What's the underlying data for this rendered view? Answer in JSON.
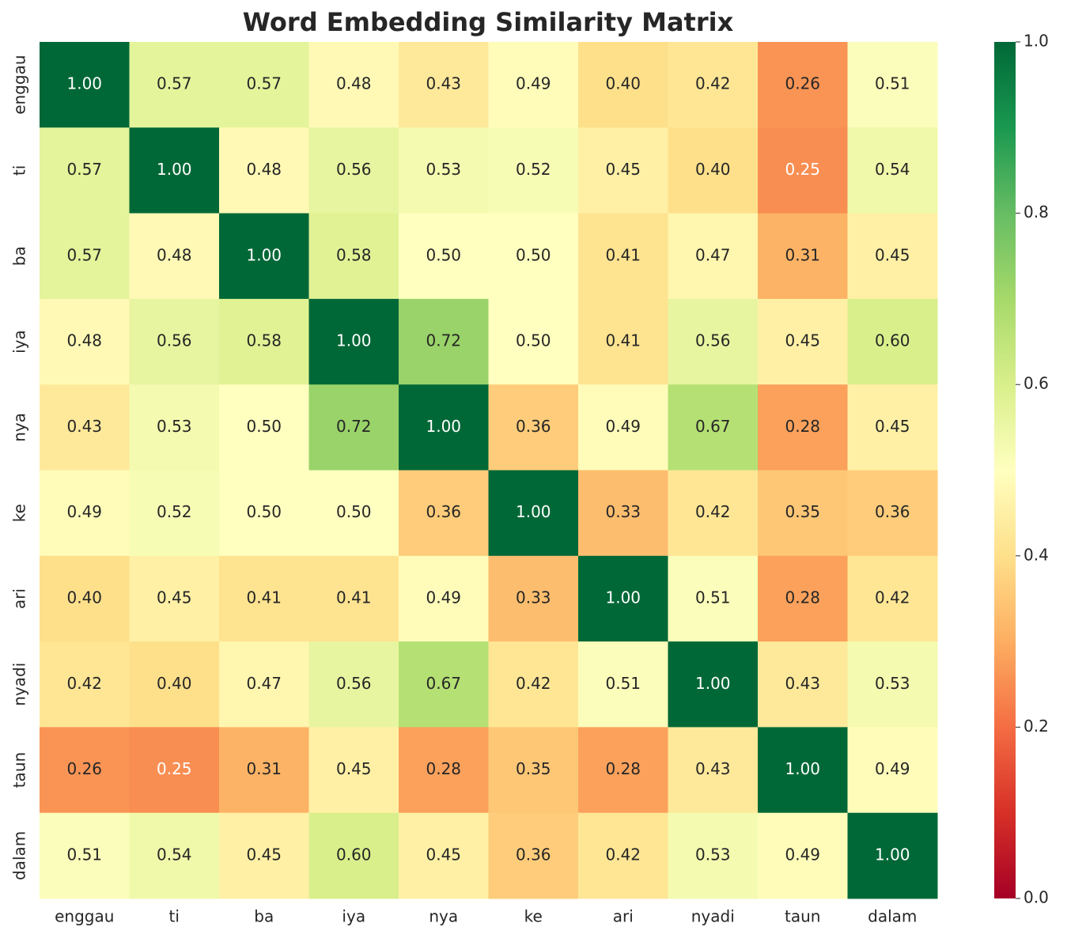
{
  "chart_data": {
    "type": "heatmap",
    "title": "Word Embedding Similarity Matrix",
    "categories": [
      "enggau",
      "ti",
      "ba",
      "iya",
      "nya",
      "ke",
      "ari",
      "nyadi",
      "taun",
      "dalam"
    ],
    "y_categories": [
      "enggau",
      "ti",
      "ba",
      "iya",
      "nya",
      "ke",
      "ari",
      "nyadi",
      "taun",
      "dalam"
    ],
    "values": [
      [
        1.0,
        0.57,
        0.57,
        0.48,
        0.43,
        0.49,
        0.4,
        0.42,
        0.26,
        0.51
      ],
      [
        0.57,
        1.0,
        0.48,
        0.56,
        0.53,
        0.52,
        0.45,
        0.4,
        0.25,
        0.54
      ],
      [
        0.57,
        0.48,
        1.0,
        0.58,
        0.5,
        0.5,
        0.41,
        0.47,
        0.31,
        0.45
      ],
      [
        0.48,
        0.56,
        0.58,
        1.0,
        0.72,
        0.5,
        0.41,
        0.56,
        0.45,
        0.6
      ],
      [
        0.43,
        0.53,
        0.5,
        0.72,
        1.0,
        0.36,
        0.49,
        0.67,
        0.28,
        0.45
      ],
      [
        0.49,
        0.52,
        0.5,
        0.5,
        0.36,
        1.0,
        0.33,
        0.42,
        0.35,
        0.36
      ],
      [
        0.4,
        0.45,
        0.41,
        0.41,
        0.49,
        0.33,
        1.0,
        0.51,
        0.28,
        0.42
      ],
      [
        0.42,
        0.4,
        0.47,
        0.56,
        0.67,
        0.42,
        0.51,
        1.0,
        0.43,
        0.53
      ],
      [
        0.26,
        0.25,
        0.31,
        0.45,
        0.28,
        0.35,
        0.28,
        0.43,
        1.0,
        0.49
      ],
      [
        0.51,
        0.54,
        0.45,
        0.6,
        0.45,
        0.36,
        0.42,
        0.53,
        0.49,
        1.0
      ]
    ],
    "value_labels": [
      [
        "1.00",
        "0.57",
        "0.57",
        "0.48",
        "0.43",
        "0.49",
        "0.40",
        "0.42",
        "0.26",
        "0.51"
      ],
      [
        "0.57",
        "1.00",
        "0.48",
        "0.56",
        "0.53",
        "0.52",
        "0.45",
        "0.40",
        "0.25",
        "0.54"
      ],
      [
        "0.57",
        "0.48",
        "1.00",
        "0.58",
        "0.50",
        "0.50",
        "0.41",
        "0.47",
        "0.31",
        "0.45"
      ],
      [
        "0.48",
        "0.56",
        "0.58",
        "1.00",
        "0.72",
        "0.50",
        "0.41",
        "0.56",
        "0.45",
        "0.60"
      ],
      [
        "0.43",
        "0.53",
        "0.50",
        "0.72",
        "1.00",
        "0.36",
        "0.49",
        "0.67",
        "0.28",
        "0.45"
      ],
      [
        "0.49",
        "0.52",
        "0.50",
        "0.50",
        "0.36",
        "1.00",
        "0.33",
        "0.42",
        "0.35",
        "0.36"
      ],
      [
        "0.40",
        "0.45",
        "0.41",
        "0.41",
        "0.49",
        "0.33",
        "1.00",
        "0.51",
        "0.28",
        "0.42"
      ],
      [
        "0.42",
        "0.40",
        "0.47",
        "0.56",
        "0.67",
        "0.42",
        "0.51",
        "1.00",
        "0.43",
        "0.53"
      ],
      [
        "0.26",
        "0.25",
        "0.31",
        "0.45",
        "0.28",
        "0.35",
        "0.28",
        "0.43",
        "1.00",
        "0.49"
      ],
      [
        "0.51",
        "0.54",
        "0.45",
        "0.60",
        "0.45",
        "0.36",
        "0.42",
        "0.53",
        "0.49",
        "1.00"
      ]
    ],
    "zlim": [
      0,
      1
    ],
    "zticks": [
      {
        "value": 0,
        "label": "0.0"
      },
      0.2,
      0.4,
      0.6,
      0.8,
      {
        "value": 1,
        "label": "1.0"
      }
    ],
    "colorscale": [
      "#a50026",
      "#d73027",
      "#f46d43",
      "#fdae61",
      "#fee08b",
      "#ffffbf",
      "#d9ef8b",
      "#a6d96a",
      "#66bd63",
      "#1a9850",
      "#006837"
    ]
  }
}
